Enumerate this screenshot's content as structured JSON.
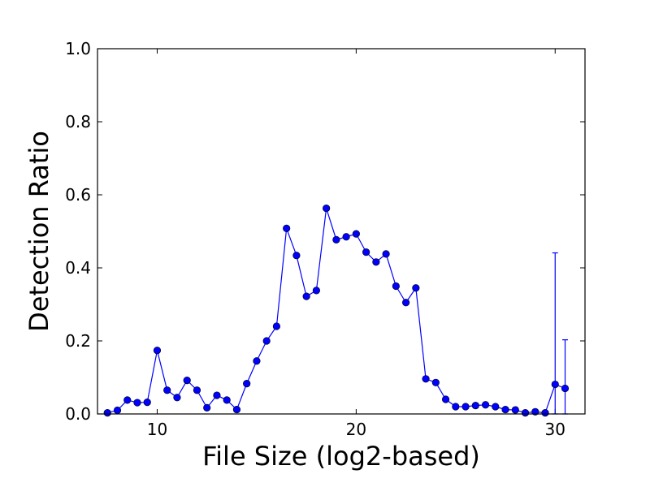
{
  "chart_data": {
    "type": "line",
    "title": "",
    "xlabel": "File Size (log2-based)",
    "ylabel": "Detection Ratio",
    "xlim": [
      7,
      31.5
    ],
    "ylim": [
      0,
      1.0
    ],
    "xticks": [
      10,
      20,
      30
    ],
    "yticks": [
      0.0,
      0.2,
      0.4,
      0.6,
      0.8,
      1.0
    ],
    "xtick_labels": [
      "10",
      "20",
      "30"
    ],
    "ytick_labels": [
      "0.0",
      "0.2",
      "0.4",
      "0.6",
      "0.8",
      "1.0"
    ],
    "grid": false,
    "legend": "none",
    "series": [
      {
        "color": "#0000ff",
        "marker": "circle",
        "x": [
          7.5,
          8.0,
          8.5,
          9.0,
          9.5,
          10.0,
          10.5,
          11.0,
          11.5,
          12.0,
          12.5,
          13.0,
          13.5,
          14.0,
          14.5,
          15.0,
          15.5,
          16.0,
          16.5,
          17.0,
          17.5,
          18.0,
          18.5,
          19.0,
          19.5,
          20.0,
          20.5,
          21.0,
          21.5,
          22.0,
          22.5,
          23.0,
          23.5,
          24.0,
          24.5,
          25.0,
          25.5,
          26.0,
          26.5,
          27.0,
          27.5,
          28.0,
          28.5,
          29.0,
          29.5,
          30.0,
          30.5
        ],
        "y": [
          0.003,
          0.01,
          0.038,
          0.031,
          0.032,
          0.174,
          0.065,
          0.045,
          0.092,
          0.065,
          0.017,
          0.051,
          0.038,
          0.012,
          0.083,
          0.145,
          0.2,
          0.24,
          0.508,
          0.434,
          0.322,
          0.338,
          0.563,
          0.477,
          0.485,
          0.493,
          0.443,
          0.416,
          0.438,
          0.35,
          0.305,
          0.345,
          0.096,
          0.086,
          0.04,
          0.02,
          0.02,
          0.023,
          0.025,
          0.02,
          0.012,
          0.011,
          0.003,
          0.006,
          0.003,
          0.081,
          0.07
        ],
        "error_bars": [
          {
            "x": 30.0,
            "lower": 0.0,
            "upper": 0.441
          },
          {
            "x": 30.5,
            "lower": 0.0,
            "upper": 0.203
          }
        ]
      }
    ]
  }
}
